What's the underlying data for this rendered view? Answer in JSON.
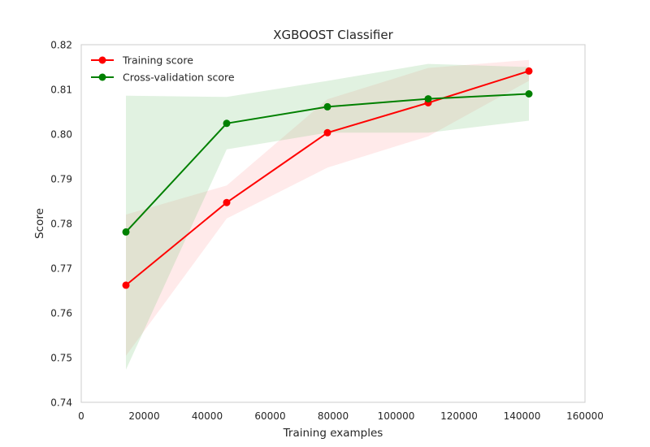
{
  "chart_data": {
    "type": "line",
    "title": "XGBOOST Classifier",
    "xlabel": "Training examples",
    "ylabel": "Score",
    "xlim": [
      0,
      160000
    ],
    "ylim": [
      0.74,
      0.82
    ],
    "xticks": [
      0,
      20000,
      40000,
      60000,
      80000,
      100000,
      120000,
      140000,
      160000
    ],
    "xtick_labels": [
      "0",
      "20000",
      "40000",
      "60000",
      "80000",
      "100000",
      "120000",
      "140000",
      "160000"
    ],
    "yticks": [
      0.74,
      0.75,
      0.76,
      0.77,
      0.78,
      0.79,
      0.8,
      0.81,
      0.82
    ],
    "ytick_labels": [
      "0.74",
      "0.75",
      "0.76",
      "0.77",
      "0.78",
      "0.79",
      "0.80",
      "0.81",
      "0.82"
    ],
    "grid": false,
    "legend_position": "top-left",
    "series": [
      {
        "name": "Training score",
        "color": "#ff0000",
        "band_color": "#ffaaaa",
        "x": [
          14200,
          46200,
          78200,
          110200,
          142200
        ],
        "y": [
          0.7662,
          0.7847,
          0.8003,
          0.807,
          0.8141
        ],
        "y_upper": [
          0.782,
          0.7885,
          0.8078,
          0.8148,
          0.8166
        ],
        "y_lower": [
          0.7504,
          0.7811,
          0.7925,
          0.7995,
          0.8119
        ]
      },
      {
        "name": "Cross-validation score",
        "color": "#008000",
        "band_color": "#88cc88",
        "x": [
          14200,
          46200,
          78200,
          110200,
          142200
        ],
        "y": [
          0.7781,
          0.8024,
          0.8061,
          0.8079,
          0.809
        ],
        "y_upper": [
          0.8086,
          0.8083,
          0.8119,
          0.8157,
          0.815
        ],
        "y_lower": [
          0.7473,
          0.7966,
          0.8003,
          0.8003,
          0.803
        ]
      }
    ]
  }
}
